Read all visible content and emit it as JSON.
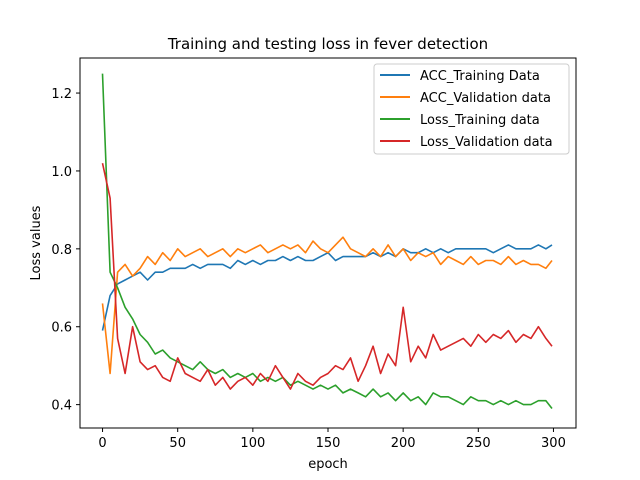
{
  "chart_data": {
    "type": "line",
    "title": "Training and testing loss in fever detection",
    "xlabel": "epoch",
    "ylabel": "Loss values",
    "xlim": [
      -15,
      315
    ],
    "ylim": [
      0.34,
      1.29
    ],
    "xticks": [
      0,
      50,
      100,
      150,
      200,
      250,
      300
    ],
    "yticks": [
      0.4,
      0.6,
      0.8,
      1.0,
      1.2
    ],
    "ytick_labels": [
      "0.4",
      "0.6",
      "0.8",
      "1.0",
      "1.2"
    ],
    "grid": false,
    "legend_position": "top-right",
    "x": [
      0,
      5,
      10,
      15,
      20,
      25,
      30,
      35,
      40,
      45,
      50,
      55,
      60,
      65,
      70,
      75,
      80,
      85,
      90,
      95,
      100,
      105,
      110,
      115,
      120,
      125,
      130,
      135,
      140,
      145,
      150,
      155,
      160,
      165,
      170,
      175,
      180,
      185,
      190,
      195,
      200,
      205,
      210,
      215,
      220,
      225,
      230,
      235,
      240,
      245,
      250,
      255,
      260,
      265,
      270,
      275,
      280,
      285,
      290,
      295,
      299
    ],
    "series": [
      {
        "name": "ACC_Training Data",
        "color": "#1f77b4",
        "values": [
          0.59,
          0.68,
          0.71,
          0.72,
          0.73,
          0.74,
          0.72,
          0.74,
          0.74,
          0.75,
          0.75,
          0.75,
          0.76,
          0.75,
          0.76,
          0.76,
          0.76,
          0.75,
          0.77,
          0.76,
          0.77,
          0.76,
          0.77,
          0.77,
          0.78,
          0.77,
          0.78,
          0.77,
          0.77,
          0.78,
          0.79,
          0.77,
          0.78,
          0.78,
          0.78,
          0.78,
          0.79,
          0.78,
          0.79,
          0.78,
          0.8,
          0.79,
          0.79,
          0.8,
          0.79,
          0.8,
          0.79,
          0.8,
          0.8,
          0.8,
          0.8,
          0.8,
          0.79,
          0.8,
          0.81,
          0.8,
          0.8,
          0.8,
          0.81,
          0.8,
          0.81
        ]
      },
      {
        "name": "ACC_Validation data",
        "color": "#ff7f0e",
        "values": [
          0.66,
          0.48,
          0.74,
          0.76,
          0.73,
          0.75,
          0.78,
          0.76,
          0.79,
          0.77,
          0.8,
          0.78,
          0.79,
          0.8,
          0.78,
          0.79,
          0.8,
          0.78,
          0.8,
          0.79,
          0.8,
          0.81,
          0.79,
          0.8,
          0.81,
          0.8,
          0.81,
          0.79,
          0.82,
          0.8,
          0.79,
          0.81,
          0.83,
          0.8,
          0.79,
          0.78,
          0.8,
          0.78,
          0.81,
          0.78,
          0.8,
          0.77,
          0.79,
          0.78,
          0.79,
          0.76,
          0.78,
          0.77,
          0.76,
          0.78,
          0.76,
          0.77,
          0.77,
          0.76,
          0.78,
          0.76,
          0.77,
          0.76,
          0.76,
          0.75,
          0.77
        ]
      },
      {
        "name": "Loss_Training data",
        "color": "#2ca02c",
        "values": [
          1.25,
          0.74,
          0.7,
          0.65,
          0.62,
          0.58,
          0.56,
          0.53,
          0.54,
          0.52,
          0.51,
          0.5,
          0.49,
          0.51,
          0.49,
          0.48,
          0.49,
          0.47,
          0.48,
          0.47,
          0.48,
          0.46,
          0.47,
          0.46,
          0.47,
          0.45,
          0.46,
          0.45,
          0.44,
          0.45,
          0.44,
          0.45,
          0.43,
          0.44,
          0.43,
          0.42,
          0.44,
          0.42,
          0.43,
          0.41,
          0.43,
          0.41,
          0.42,
          0.4,
          0.43,
          0.42,
          0.42,
          0.41,
          0.4,
          0.42,
          0.41,
          0.41,
          0.4,
          0.41,
          0.4,
          0.41,
          0.4,
          0.4,
          0.41,
          0.41,
          0.39
        ]
      },
      {
        "name": "Loss_Validation data",
        "color": "#d62728",
        "values": [
          1.02,
          0.93,
          0.57,
          0.48,
          0.6,
          0.51,
          0.49,
          0.5,
          0.47,
          0.46,
          0.52,
          0.48,
          0.47,
          0.46,
          0.49,
          0.45,
          0.47,
          0.44,
          0.46,
          0.47,
          0.45,
          0.48,
          0.46,
          0.5,
          0.47,
          0.44,
          0.48,
          0.46,
          0.45,
          0.47,
          0.48,
          0.5,
          0.49,
          0.52,
          0.46,
          0.5,
          0.55,
          0.48,
          0.53,
          0.5,
          0.65,
          0.51,
          0.55,
          0.52,
          0.58,
          0.54,
          0.55,
          0.56,
          0.57,
          0.55,
          0.58,
          0.56,
          0.58,
          0.57,
          0.59,
          0.56,
          0.58,
          0.57,
          0.6,
          0.57,
          0.55
        ]
      }
    ]
  }
}
